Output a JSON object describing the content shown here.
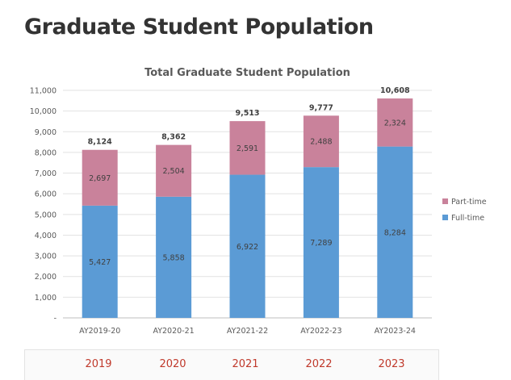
{
  "page": {
    "title": "Graduate Student Population"
  },
  "chart_data": {
    "type": "bar",
    "stacked": true,
    "title": "Total Graduate Student Population",
    "categories": [
      "AY2019-20",
      "AY2020-21",
      "AY2021-22",
      "AY2022-23",
      "AY2023-24"
    ],
    "series": [
      {
        "name": "Full-time",
        "color": "#5b9bd5",
        "values": [
          5427,
          5858,
          6922,
          7289,
          8284
        ],
        "labels": [
          "5,427",
          "5,858",
          "6,922",
          "7,289",
          "8,284"
        ]
      },
      {
        "name": "Part-time",
        "color": "#c9829b",
        "values": [
          2697,
          2504,
          2591,
          2488,
          2324
        ],
        "labels": [
          "2,697",
          "2,504",
          "2,591",
          "2,488",
          "2,324"
        ]
      }
    ],
    "totals": [
      8124,
      8362,
      9513,
      9777,
      10608
    ],
    "total_labels": [
      "8,124",
      "8,362",
      "9,513",
      "9,777",
      "10,608"
    ],
    "ylim": [
      0,
      11000
    ],
    "yticks": [
      0,
      1000,
      2000,
      3000,
      4000,
      5000,
      6000,
      7000,
      8000,
      9000,
      10000,
      11000
    ],
    "ytick_labels": [
      "-",
      "1,000",
      "2,000",
      "3,000",
      "4,000",
      "5,000",
      "6,000",
      "7,000",
      "8,000",
      "9,000",
      "10,000",
      "11,000"
    ],
    "legend": {
      "placement": "right",
      "order": [
        "Part-time",
        "Full-time"
      ]
    },
    "grid": true,
    "xlabel": "",
    "ylabel": ""
  },
  "year_tabs": [
    "2019",
    "2020",
    "2021",
    "2022",
    "2023"
  ]
}
